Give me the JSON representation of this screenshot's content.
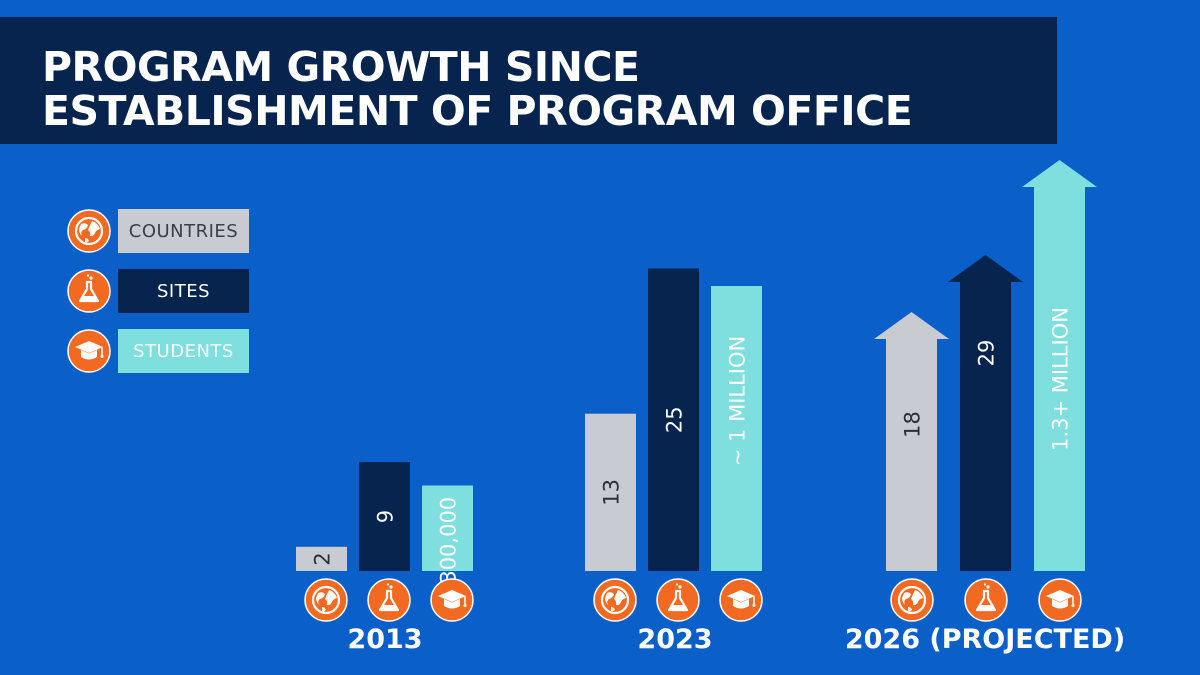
{
  "title": {
    "line1": "PROGRAM GROWTH SINCE",
    "line2": "ESTABLISHMENT OF PROGRAM OFFICE"
  },
  "legend": [
    {
      "key": "countries",
      "label": "COUNTRIES",
      "icon": "globe-icon",
      "color": "#c8ccd2",
      "text_color": "#3a3f47"
    },
    {
      "key": "sites",
      "label": "SITES",
      "icon": "flask-icon",
      "color": "#07244f",
      "text_color": "#ffffff"
    },
    {
      "key": "students",
      "label": "STUDENTS",
      "icon": "graduation-cap-icon",
      "color": "#7fdede",
      "text_color": "#ffffff"
    }
  ],
  "colors": {
    "background": "#0a5fc9",
    "title_bg": "#07244f",
    "icon_orange": "#f26a21",
    "countries": "#c8ccd2",
    "sites": "#07244f",
    "students": "#7fdede"
  },
  "chart_data": {
    "type": "bar",
    "title": "PROGRAM GROWTH SINCE ESTABLISHMENT OF PROGRAM OFFICE",
    "categories": [
      "2013",
      "2023",
      "2026 (PROJECTED)"
    ],
    "series": [
      {
        "name": "COUNTRIES",
        "values": [
          2,
          13,
          18
        ],
        "labels": [
          "2",
          "13",
          "18"
        ]
      },
      {
        "name": "SITES",
        "values": [
          9,
          25,
          29
        ],
        "labels": [
          "9",
          "25",
          "29"
        ]
      },
      {
        "name": "STUDENTS",
        "values": [
          300000,
          1000000,
          1300000
        ],
        "labels": [
          "300,000",
          "~ 1 MILLION",
          "1.3+  MILLION"
        ]
      }
    ],
    "projected_category": "2026 (PROJECTED)",
    "xlabel": "",
    "ylabel": ""
  }
}
